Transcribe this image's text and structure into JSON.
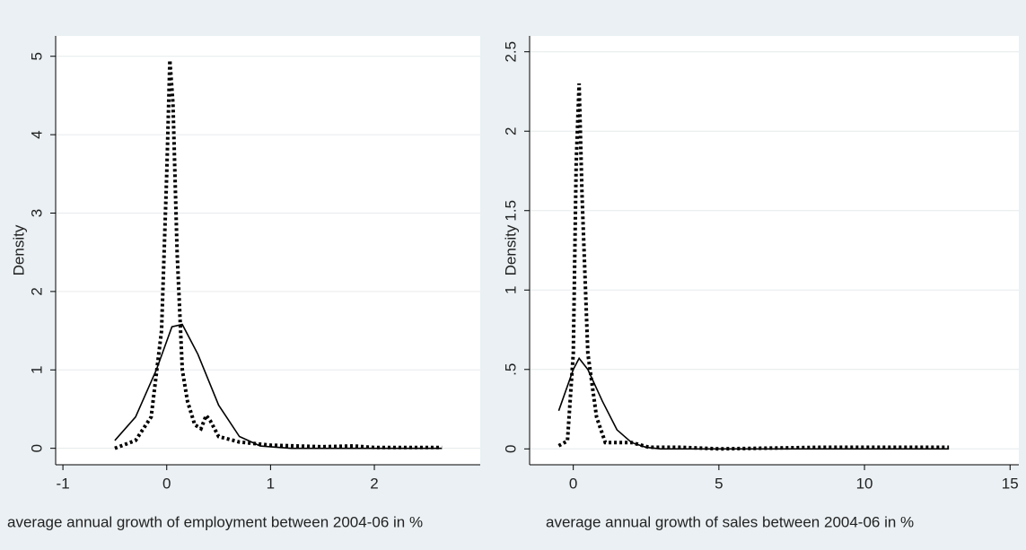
{
  "chart_data": [
    {
      "type": "line",
      "y_label": "Density",
      "x_label": "average annual growth of employment between 2004-06 in %",
      "xlim": [
        -1.07,
        3.02
      ],
      "xticks": [
        -1,
        0,
        1,
        2
      ],
      "ylim": [
        -0.21,
        5.26
      ],
      "yticks": [
        0,
        1,
        2,
        3,
        4,
        5
      ],
      "grid": true,
      "series": [
        {
          "style": "solid",
          "color": "#000000",
          "x": [
            -0.5,
            -0.3,
            -0.1,
            0.05,
            0.15,
            0.3,
            0.5,
            0.7,
            0.9,
            1.2,
            2.65
          ],
          "values": [
            0.1,
            0.4,
            1.0,
            1.55,
            1.58,
            1.2,
            0.55,
            0.15,
            0.03,
            0,
            0
          ]
        },
        {
          "style": "dotted",
          "color": "#000000",
          "x": [
            -0.5,
            -0.3,
            -0.15,
            -0.05,
            0.0,
            0.03,
            0.06,
            0.1,
            0.15,
            0.2,
            0.27,
            0.33,
            0.38,
            0.42,
            0.5,
            0.7,
            1.0,
            1.5,
            1.8,
            2.0,
            2.65
          ],
          "values": [
            0,
            0.1,
            0.4,
            1.5,
            3.5,
            4.95,
            4.4,
            2.5,
            1.0,
            0.6,
            0.3,
            0.25,
            0.42,
            0.35,
            0.15,
            0.08,
            0.04,
            0.02,
            0.03,
            0.01,
            0.01
          ]
        }
      ]
    },
    {
      "type": "line",
      "y_label": "Density",
      "x_label": "average annual growth of sales between 2004-06 in %",
      "xlim": [
        -1.5,
        15.3
      ],
      "xticks": [
        0,
        5,
        10,
        15
      ],
      "ylim": [
        -0.1,
        2.6
      ],
      "yticks": [
        0,
        {
          "value": 0.5,
          "label": ".5"
        },
        1,
        1.5,
        2,
        2.5
      ],
      "grid": true,
      "series": [
        {
          "style": "solid",
          "color": "#000000",
          "x": [
            -0.5,
            0,
            0.2,
            0.5,
            1,
            1.5,
            2,
            2.5,
            3,
            12.9
          ],
          "values": [
            0.24,
            0.5,
            0.57,
            0.5,
            0.3,
            0.12,
            0.04,
            0.01,
            0,
            0
          ]
        },
        {
          "style": "dotted",
          "color": "#000000",
          "x": [
            -0.5,
            -0.2,
            0.0,
            0.1,
            0.2,
            0.3,
            0.5,
            0.8,
            1.1,
            2,
            2.6,
            3.7,
            5,
            8.5,
            12.9
          ],
          "values": [
            0.02,
            0.05,
            0.6,
            1.8,
            2.3,
            1.6,
            0.6,
            0.2,
            0.04,
            0.04,
            0.01,
            0.01,
            0,
            0.01,
            0.01
          ]
        }
      ]
    }
  ]
}
